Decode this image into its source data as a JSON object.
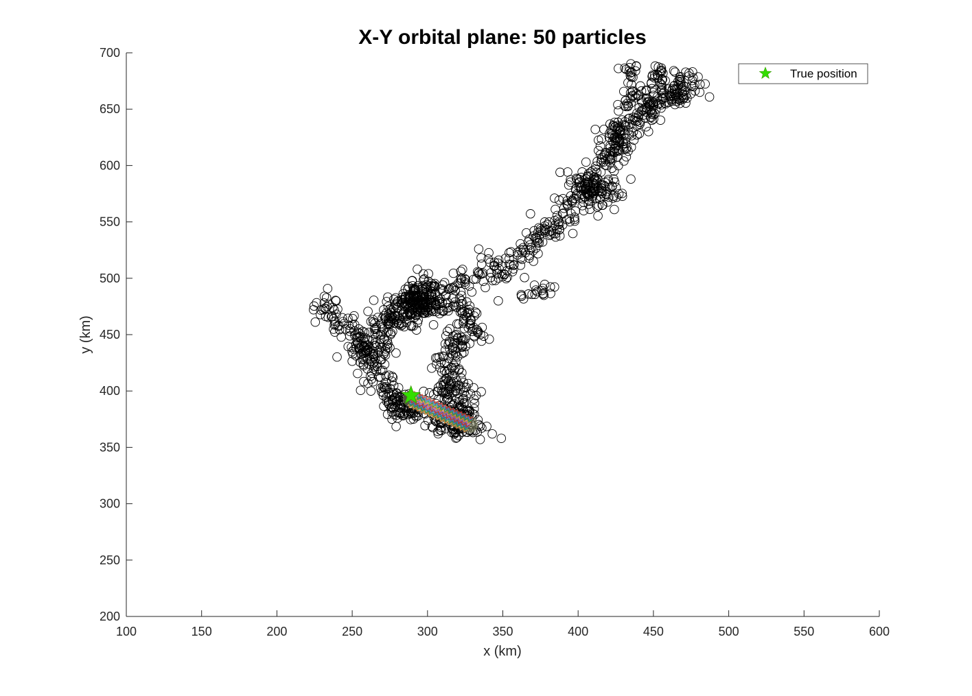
{
  "chart_data": {
    "type": "scatter",
    "title": "X-Y orbital plane: 50 particles",
    "xlabel": "x (km)",
    "ylabel": "y (km)",
    "xlim": [
      100,
      600
    ],
    "ylim": [
      200,
      700
    ],
    "xticks": [
      "100",
      "150",
      "200",
      "250",
      "300",
      "350",
      "400",
      "450",
      "500",
      "550",
      "600"
    ],
    "yticks": [
      "200",
      "250",
      "300",
      "350",
      "400",
      "450",
      "500",
      "550",
      "600",
      "650",
      "700"
    ],
    "grid": false,
    "legend": {
      "position": "top-right",
      "entries": [
        {
          "label": "True position",
          "marker": "star",
          "color": "#33dd00"
        }
      ]
    },
    "true_position": {
      "x": 289,
      "y": 396
    },
    "track": {
      "from": {
        "x": 289,
        "y": 393
      },
      "to": {
        "x": 328,
        "y": 370
      }
    },
    "track_colors": [
      "#e3342f",
      "#3b7dd8",
      "#38a852",
      "#f6993f",
      "#9561e2"
    ],
    "series": [
      {
        "marker": "circle",
        "color": "#000000",
        "path": [
          {
            "x": 229,
            "y": 479
          },
          {
            "x": 245,
            "y": 455
          },
          {
            "x": 262,
            "y": 434
          },
          {
            "x": 268,
            "y": 412
          },
          {
            "x": 280,
            "y": 390
          },
          {
            "x": 305,
            "y": 372
          },
          {
            "x": 330,
            "y": 365
          },
          {
            "x": 318,
            "y": 392
          },
          {
            "x": 313,
            "y": 418
          },
          {
            "x": 318,
            "y": 444
          },
          {
            "x": 330,
            "y": 447
          },
          {
            "x": 326,
            "y": 472
          },
          {
            "x": 305,
            "y": 478
          },
          {
            "x": 290,
            "y": 481
          },
          {
            "x": 275,
            "y": 466
          },
          {
            "x": 268,
            "y": 454
          },
          {
            "x": 300,
            "y": 490
          },
          {
            "x": 330,
            "y": 497
          },
          {
            "x": 355,
            "y": 513
          },
          {
            "x": 380,
            "y": 538
          },
          {
            "x": 400,
            "y": 570
          },
          {
            "x": 415,
            "y": 595
          },
          {
            "x": 425,
            "y": 618
          },
          {
            "x": 440,
            "y": 643
          },
          {
            "x": 460,
            "y": 660
          },
          {
            "x": 477,
            "y": 677
          }
        ],
        "branches": [
          [
            {
              "x": 432,
              "y": 690
            },
            {
              "x": 440,
              "y": 668
            },
            {
              "x": 430,
              "y": 648
            }
          ],
          [
            {
              "x": 455,
              "y": 690
            },
            {
              "x": 448,
              "y": 665
            },
            {
              "x": 445,
              "y": 640
            }
          ],
          [
            {
              "x": 365,
              "y": 483
            },
            {
              "x": 375,
              "y": 488
            },
            {
              "x": 385,
              "y": 491
            }
          ],
          [
            {
              "x": 292,
              "y": 470
            },
            {
              "x": 295,
              "y": 495
            }
          ]
        ],
        "clusters": [
          {
            "x": 295,
            "y": 478,
            "spread": 10,
            "count": 120
          },
          {
            "x": 262,
            "y": 440,
            "spread": 8,
            "count": 60
          },
          {
            "x": 408,
            "y": 578,
            "spread": 8,
            "count": 90
          },
          {
            "x": 283,
            "y": 386,
            "spread": 7,
            "count": 60
          },
          {
            "x": 320,
            "y": 375,
            "spread": 7,
            "count": 50
          },
          {
            "x": 317,
            "y": 400,
            "spread": 7,
            "count": 40
          },
          {
            "x": 466,
            "y": 664,
            "spread": 6,
            "count": 40
          },
          {
            "x": 428,
            "y": 625,
            "spread": 7,
            "count": 50
          }
        ],
        "outliers": [
          {
            "x": 388,
            "y": 594
          },
          {
            "x": 435,
            "y": 588
          },
          {
            "x": 424,
            "y": 561
          },
          {
            "x": 349,
            "y": 358
          },
          {
            "x": 343,
            "y": 362
          },
          {
            "x": 335,
            "y": 357
          },
          {
            "x": 334,
            "y": 526
          },
          {
            "x": 347,
            "y": 480
          },
          {
            "x": 341,
            "y": 446
          },
          {
            "x": 476,
            "y": 683
          },
          {
            "x": 481,
            "y": 672
          }
        ]
      }
    ]
  }
}
